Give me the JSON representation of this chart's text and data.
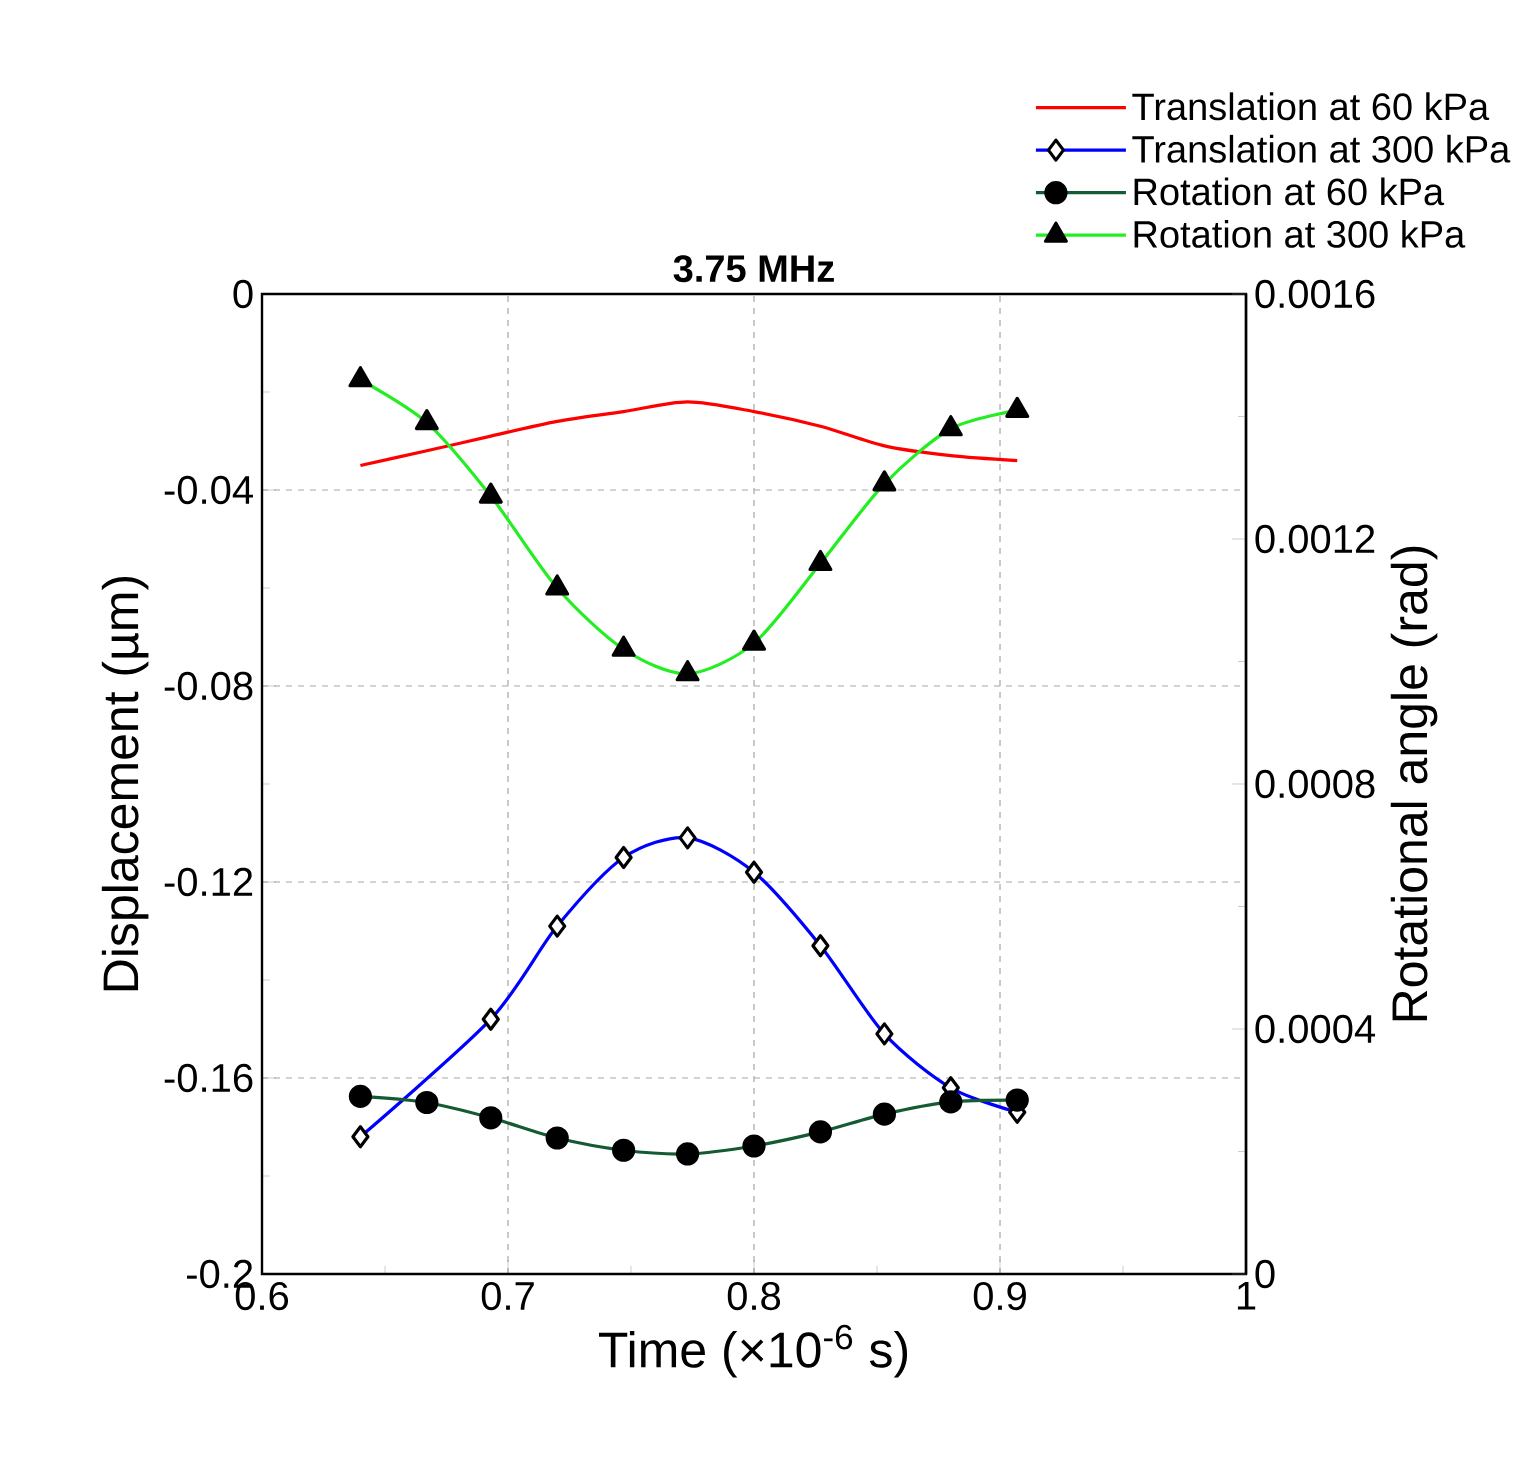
{
  "chart_data": {
    "type": "line",
    "title": "**3.75 MHz**",
    "xlabel": "Time (×10$^{-6}$ s)",
    "ylabel": "Displacement (µm)",
    "y2label": "Rotational angle (rad)",
    "x": [
      0.64,
      0.667,
      0.693,
      0.72,
      0.747,
      0.773,
      0.8,
      0.827,
      0.853,
      0.88,
      0.907
    ],
    "series": [
      {
        "name": "Translation at 60 kPa",
        "color": "#ff0000",
        "marker": "none",
        "values": [
          -0.035,
          -0.032,
          -0.029,
          -0.026,
          -0.024,
          -0.022,
          -0.024,
          -0.027,
          -0.031,
          -0.033,
          -0.034
        ]
      },
      {
        "name": "Translation at 300 kPa",
        "color": "#0000ff",
        "marker": "diamond",
        "values": [
          -0.172,
          null,
          -0.148,
          -0.129,
          -0.115,
          -0.111,
          -0.118,
          -0.133,
          -0.151,
          -0.162,
          -0.167
        ]
      },
      {
        "name": "Rotation at 60 kPa",
        "color": "#145a32",
        "marker": "circle",
        "axis": "y2",
        "values": [
          0.00029,
          0.00028,
          0.000255,
          0.000222,
          0.000202,
          0.000196,
          0.000209,
          0.000232,
          0.000261,
          0.000281,
          0.000284
        ]
      },
      {
        "name": "Rotation at 300 kPa",
        "color": "#22ee22",
        "marker": "triangle",
        "axis": "y2",
        "values": [
          0.00146,
          0.00139,
          0.00127,
          0.00112,
          0.00102,
          0.00098,
          0.00103,
          0.00116,
          0.00129,
          0.00138,
          0.00141
        ]
      }
    ],
    "xlim": [
      0.6,
      1
    ],
    "xticks": [
      0.6,
      0.7,
      0.8,
      0.9,
      1
    ],
    "ylim": [
      -0.2,
      0
    ],
    "yticks": [
      -0.2,
      -0.16,
      -0.12,
      -0.08,
      -0.04,
      0
    ],
    "y2lim": [
      0,
      0.0016
    ],
    "y2ticks": [
      0,
      0.0004,
      0.0008,
      0.0012,
      0.0016
    ],
    "grid": true,
    "legend": "top right"
  }
}
